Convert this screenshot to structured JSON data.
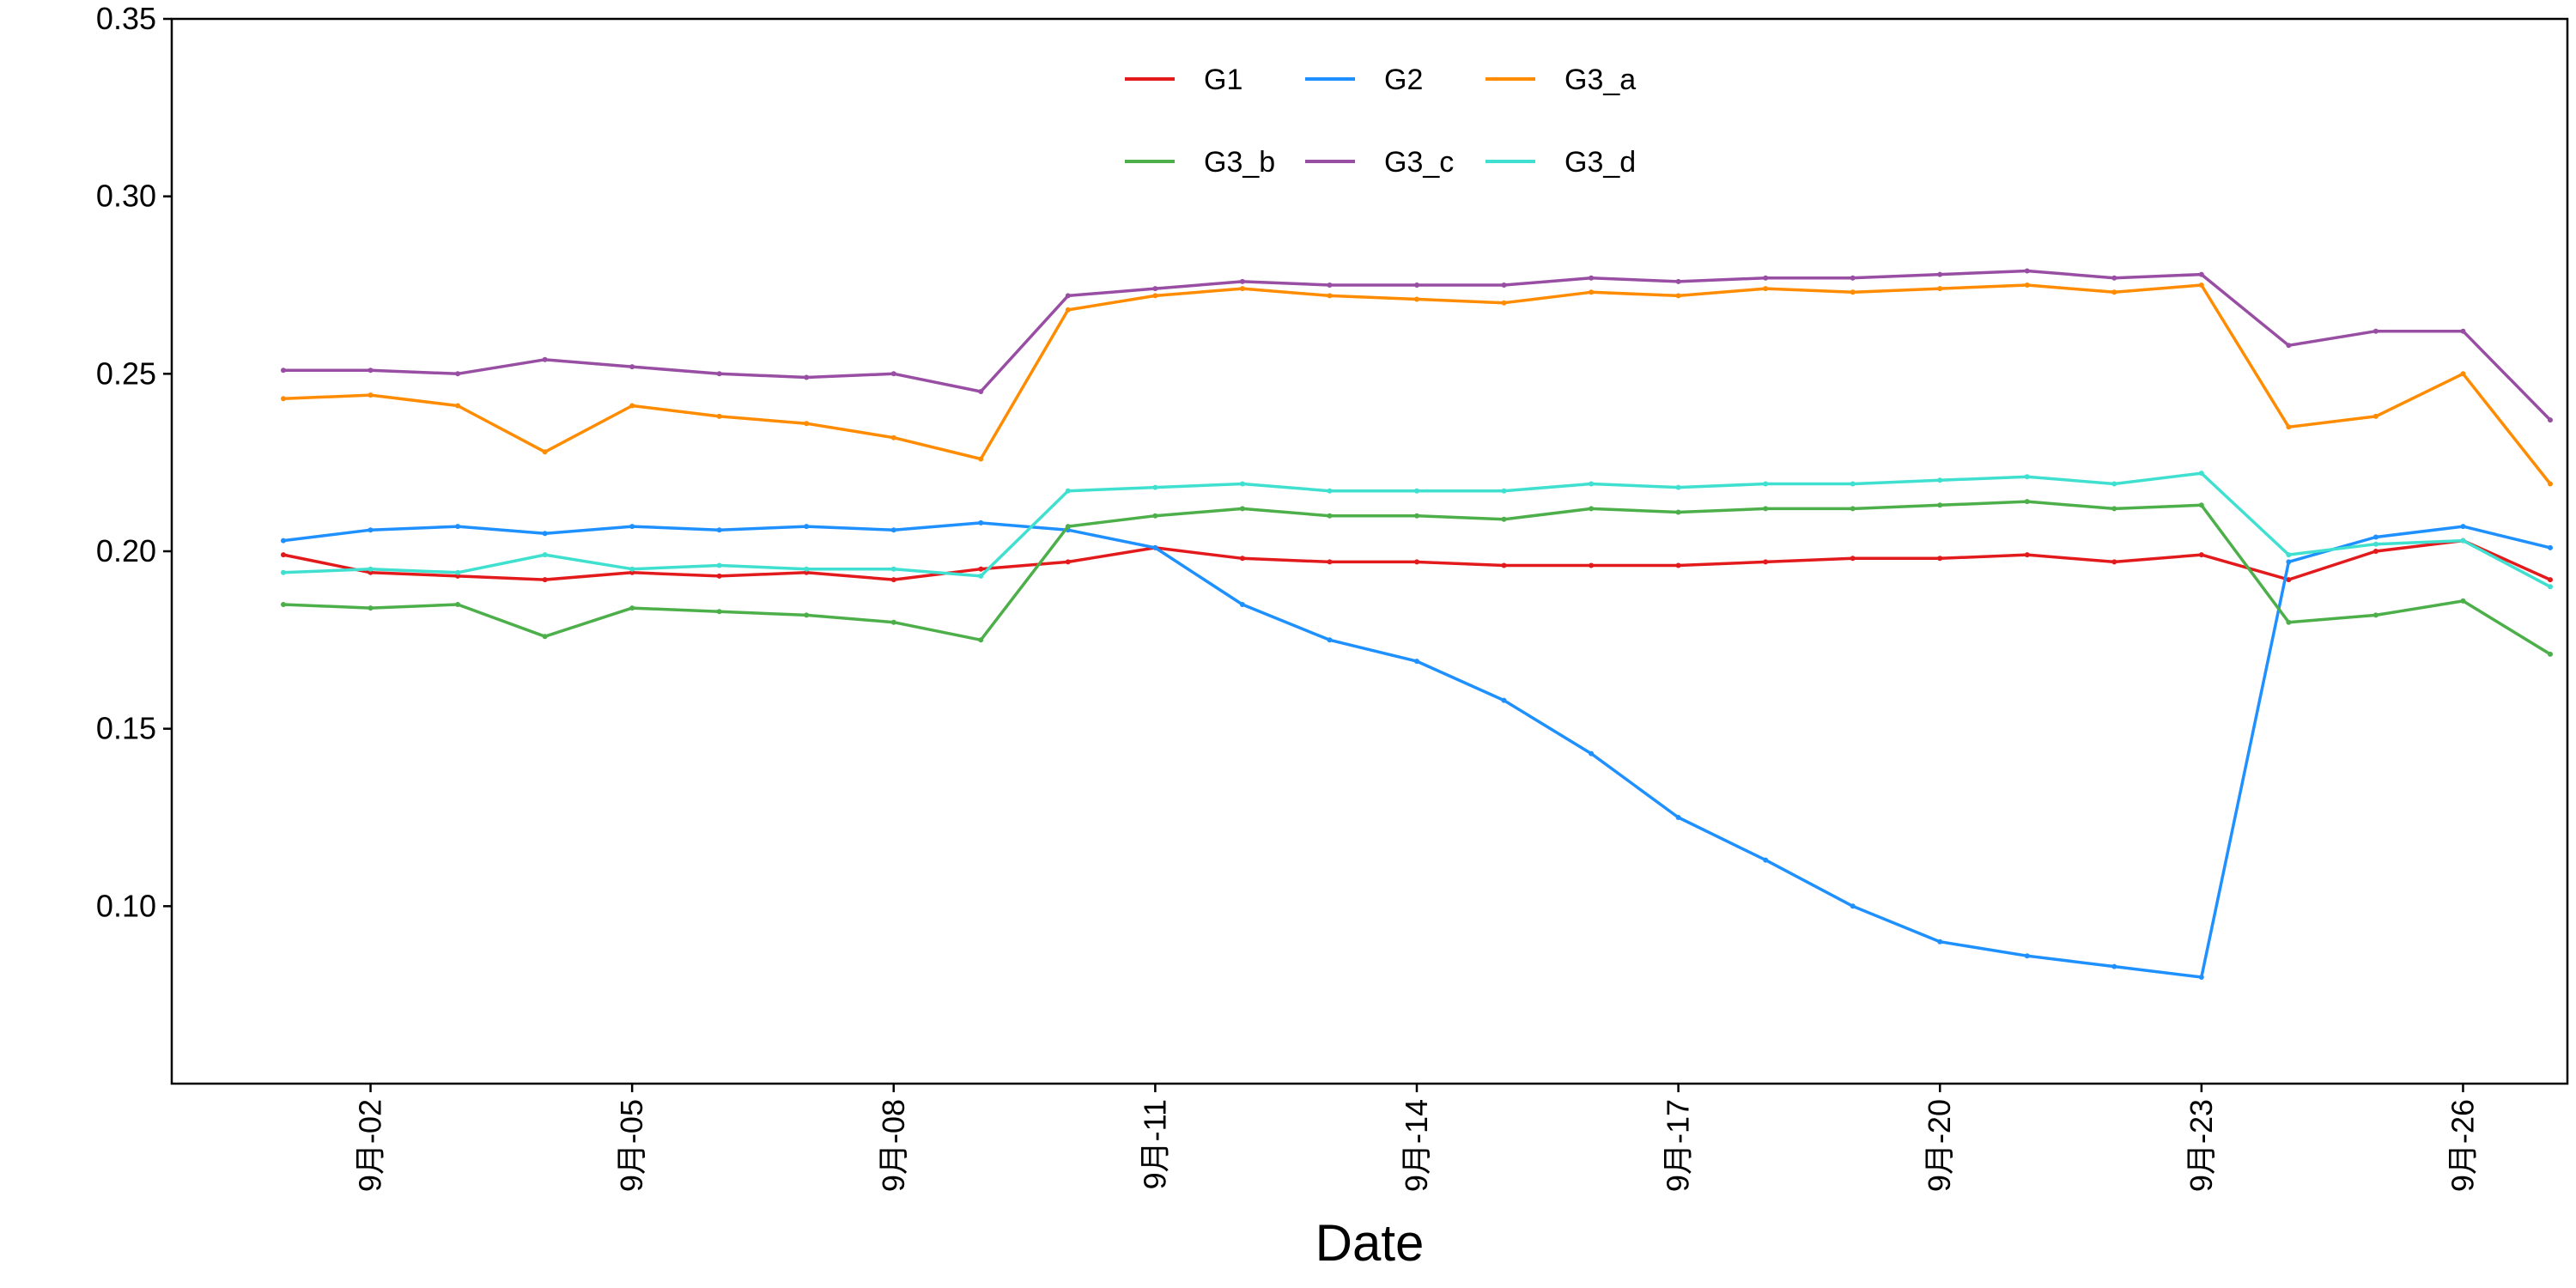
{
  "chart_data": {
    "type": "line",
    "title": "",
    "xlabel": "Date",
    "ylabel": "",
    "x_type": "date",
    "xlim": [
      "2023-09-01",
      "2023-09-27"
    ],
    "ylim": [
      0.05,
      0.35
    ],
    "y_ticks": [
      0.1,
      0.15,
      0.2,
      0.25,
      0.3,
      0.35
    ],
    "y_tick_labels": [
      "0.10",
      "0.15",
      "0.20",
      "0.25",
      "0.30",
      "0.35"
    ],
    "x_ticks": [
      "2023-09-02",
      "2023-09-05",
      "2023-09-08",
      "2023-09-11",
      "2023-09-14",
      "2023-09-17",
      "2023-09-20",
      "2023-09-23",
      "2023-09-26"
    ],
    "x_tick_labels": [
      "9月-02",
      "9月-05",
      "9月-08",
      "9月-11",
      "9月-14",
      "9月-17",
      "9月-20",
      "9月-23",
      "9月-26"
    ],
    "grid": false,
    "legend_position": "top",
    "series": [
      {
        "name": "G1",
        "color": "#e31a1c",
        "x": [
          "2023-09-01",
          "2023-09-02",
          "2023-09-03",
          "2023-09-04",
          "2023-09-05",
          "2023-09-06",
          "2023-09-07",
          "2023-09-08",
          "2023-09-09",
          "2023-09-10",
          "2023-09-11",
          "2023-09-12",
          "2023-09-13",
          "2023-09-14",
          "2023-09-15",
          "2023-09-16",
          "2023-09-17",
          "2023-09-18",
          "2023-09-19",
          "2023-09-20",
          "2023-09-21",
          "2023-09-22",
          "2023-09-23",
          "2023-09-24",
          "2023-09-25",
          "2023-09-26",
          "2023-09-27"
        ],
        "y": [
          0.199,
          0.194,
          0.193,
          0.192,
          0.194,
          0.193,
          0.194,
          0.192,
          0.195,
          0.197,
          0.201,
          0.198,
          0.197,
          0.197,
          0.196,
          0.196,
          0.196,
          0.197,
          0.198,
          0.198,
          0.199,
          0.197,
          0.199,
          0.192,
          0.2,
          0.203,
          0.192
        ]
      },
      {
        "name": "G2",
        "color": "#1e90ff",
        "x": [
          "2023-09-01",
          "2023-09-02",
          "2023-09-03",
          "2023-09-04",
          "2023-09-05",
          "2023-09-06",
          "2023-09-07",
          "2023-09-08",
          "2023-09-09",
          "2023-09-10",
          "2023-09-11",
          "2023-09-12",
          "2023-09-13",
          "2023-09-14",
          "2023-09-15",
          "2023-09-16",
          "2023-09-17",
          "2023-09-18",
          "2023-09-19",
          "2023-09-20",
          "2023-09-21",
          "2023-09-22",
          "2023-09-23",
          "2023-09-24",
          "2023-09-25",
          "2023-09-26",
          "2023-09-27"
        ],
        "y": [
          0.203,
          0.206,
          0.207,
          0.205,
          0.207,
          0.206,
          0.207,
          0.206,
          0.208,
          0.206,
          0.201,
          0.185,
          0.175,
          0.169,
          0.158,
          0.143,
          0.125,
          0.113,
          0.1,
          0.09,
          0.086,
          0.083,
          0.08,
          0.197,
          0.204,
          0.207,
          0.201
        ]
      },
      {
        "name": "G3_a",
        "color": "#ff8c00",
        "x": [
          "2023-09-01",
          "2023-09-02",
          "2023-09-03",
          "2023-09-04",
          "2023-09-05",
          "2023-09-06",
          "2023-09-07",
          "2023-09-08",
          "2023-09-09",
          "2023-09-10",
          "2023-09-11",
          "2023-09-12",
          "2023-09-13",
          "2023-09-14",
          "2023-09-15",
          "2023-09-16",
          "2023-09-17",
          "2023-09-18",
          "2023-09-19",
          "2023-09-20",
          "2023-09-21",
          "2023-09-22",
          "2023-09-23",
          "2023-09-24",
          "2023-09-25",
          "2023-09-26",
          "2023-09-27"
        ],
        "y": [
          0.243,
          0.244,
          0.241,
          0.228,
          0.241,
          0.238,
          0.236,
          0.232,
          0.226,
          0.268,
          0.272,
          0.274,
          0.272,
          0.271,
          0.27,
          0.273,
          0.272,
          0.274,
          0.273,
          0.274,
          0.275,
          0.273,
          0.275,
          0.235,
          0.238,
          0.25,
          0.219
        ]
      },
      {
        "name": "G3_b",
        "color": "#4daf4a",
        "x": [
          "2023-09-01",
          "2023-09-02",
          "2023-09-03",
          "2023-09-04",
          "2023-09-05",
          "2023-09-06",
          "2023-09-07",
          "2023-09-08",
          "2023-09-09",
          "2023-09-10",
          "2023-09-11",
          "2023-09-12",
          "2023-09-13",
          "2023-09-14",
          "2023-09-15",
          "2023-09-16",
          "2023-09-17",
          "2023-09-18",
          "2023-09-19",
          "2023-09-20",
          "2023-09-21",
          "2023-09-22",
          "2023-09-23",
          "2023-09-24",
          "2023-09-25",
          "2023-09-26",
          "2023-09-27"
        ],
        "y": [
          0.185,
          0.184,
          0.185,
          0.176,
          0.184,
          0.183,
          0.182,
          0.18,
          0.175,
          0.207,
          0.21,
          0.212,
          0.21,
          0.21,
          0.209,
          0.212,
          0.211,
          0.212,
          0.212,
          0.213,
          0.214,
          0.212,
          0.213,
          0.18,
          0.182,
          0.186,
          0.171
        ]
      },
      {
        "name": "G3_c",
        "color": "#984ea3",
        "x": [
          "2023-09-01",
          "2023-09-02",
          "2023-09-03",
          "2023-09-04",
          "2023-09-05",
          "2023-09-06",
          "2023-09-07",
          "2023-09-08",
          "2023-09-09",
          "2023-09-10",
          "2023-09-11",
          "2023-09-12",
          "2023-09-13",
          "2023-09-14",
          "2023-09-15",
          "2023-09-16",
          "2023-09-17",
          "2023-09-18",
          "2023-09-19",
          "2023-09-20",
          "2023-09-21",
          "2023-09-22",
          "2023-09-23",
          "2023-09-24",
          "2023-09-25",
          "2023-09-26",
          "2023-09-27"
        ],
        "y": [
          0.251,
          0.251,
          0.25,
          0.254,
          0.252,
          0.25,
          0.249,
          0.25,
          0.245,
          0.272,
          0.274,
          0.276,
          0.275,
          0.275,
          0.275,
          0.277,
          0.276,
          0.277,
          0.277,
          0.278,
          0.279,
          0.277,
          0.278,
          0.258,
          0.262,
          0.262,
          0.237
        ]
      },
      {
        "name": "G3_d",
        "color": "#40e0d0",
        "x": [
          "2023-09-01",
          "2023-09-02",
          "2023-09-03",
          "2023-09-04",
          "2023-09-05",
          "2023-09-06",
          "2023-09-07",
          "2023-09-08",
          "2023-09-09",
          "2023-09-10",
          "2023-09-11",
          "2023-09-12",
          "2023-09-13",
          "2023-09-14",
          "2023-09-15",
          "2023-09-16",
          "2023-09-17",
          "2023-09-18",
          "2023-09-19",
          "2023-09-20",
          "2023-09-21",
          "2023-09-22",
          "2023-09-23",
          "2023-09-24",
          "2023-09-25",
          "2023-09-26",
          "2023-09-27"
        ],
        "y": [
          0.194,
          0.195,
          0.194,
          0.199,
          0.195,
          0.196,
          0.195,
          0.195,
          0.193,
          0.217,
          0.218,
          0.219,
          0.217,
          0.217,
          0.217,
          0.219,
          0.218,
          0.219,
          0.219,
          0.22,
          0.221,
          0.219,
          0.222,
          0.199,
          0.202,
          0.203,
          0.19
        ]
      }
    ]
  }
}
